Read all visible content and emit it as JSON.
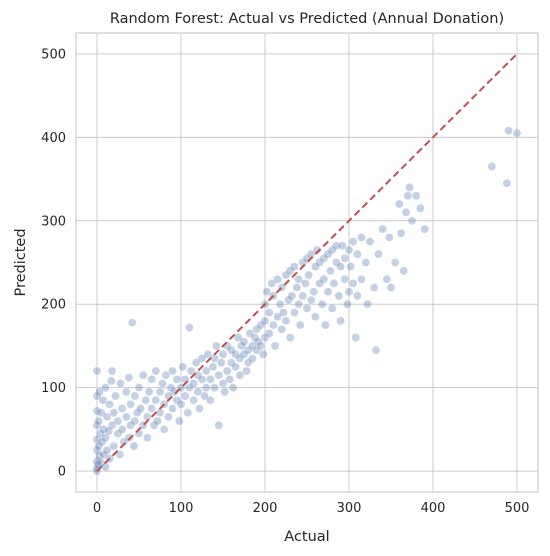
{
  "chart_data": {
    "type": "scatter",
    "title": "Random Forest: Actual vs Predicted (Annual Donation)",
    "xlabel": "Actual",
    "ylabel": "Predicted",
    "xlim": [
      -25,
      525
    ],
    "ylim": [
      -25,
      525
    ],
    "xticks": [
      0,
      100,
      200,
      300,
      400,
      500
    ],
    "yticks": [
      0,
      100,
      200,
      300,
      400,
      500
    ],
    "grid": true,
    "point_color": "#4c72b0",
    "reference_line": {
      "from": [
        0,
        0
      ],
      "to": [
        500,
        500
      ],
      "color": "#c44e52",
      "style": "dashed"
    },
    "series": [
      {
        "points": [
          [
            0,
            0
          ],
          [
            0,
            3
          ],
          [
            0,
            12
          ],
          [
            0,
            25
          ],
          [
            0,
            38
          ],
          [
            0,
            55
          ],
          [
            0,
            72
          ],
          [
            0,
            90
          ],
          [
            0,
            120
          ],
          [
            1,
            8
          ],
          [
            2,
            30
          ],
          [
            2,
            60
          ],
          [
            3,
            18
          ],
          [
            3,
            95
          ],
          [
            4,
            45
          ],
          [
            5,
            10
          ],
          [
            5,
            70
          ],
          [
            6,
            35
          ],
          [
            7,
            85
          ],
          [
            8,
            20
          ],
          [
            8,
            50
          ],
          [
            10,
            5
          ],
          [
            10,
            40
          ],
          [
            10,
            100
          ],
          [
            12,
            65
          ],
          [
            12,
            25
          ],
          [
            14,
            48
          ],
          [
            15,
            80
          ],
          [
            15,
            15
          ],
          [
            17,
            108
          ],
          [
            18,
            55
          ],
          [
            18,
            120
          ],
          [
            20,
            30
          ],
          [
            20,
            70
          ],
          [
            22,
            90
          ],
          [
            25,
            45
          ],
          [
            25,
            60
          ],
          [
            27,
            20
          ],
          [
            28,
            105
          ],
          [
            30,
            50
          ],
          [
            30,
            75
          ],
          [
            32,
            35
          ],
          [
            35,
            65
          ],
          [
            35,
            95
          ],
          [
            38,
            40
          ],
          [
            38,
            112
          ],
          [
            40,
            55
          ],
          [
            40,
            80
          ],
          [
            42,
            178
          ],
          [
            44,
            30
          ],
          [
            45,
            60
          ],
          [
            45,
            90
          ],
          [
            48,
            70
          ],
          [
            50,
            45
          ],
          [
            50,
            100
          ],
          [
            52,
            75
          ],
          [
            55,
            55
          ],
          [
            55,
            115
          ],
          [
            58,
            85
          ],
          [
            60,
            40
          ],
          [
            60,
            65
          ],
          [
            62,
            95
          ],
          [
            65,
            75
          ],
          [
            65,
            110
          ],
          [
            68,
            55
          ],
          [
            70,
            85
          ],
          [
            70,
            120
          ],
          [
            72,
            60
          ],
          [
            75,
            95
          ],
          [
            75,
            70
          ],
          [
            78,
            105
          ],
          [
            80,
            80
          ],
          [
            80,
            50
          ],
          [
            82,
            115
          ],
          [
            85,
            90
          ],
          [
            85,
            65
          ],
          [
            88,
            100
          ],
          [
            90,
            75
          ],
          [
            90,
            120
          ],
          [
            92,
            95
          ],
          [
            95,
            85
          ],
          [
            95,
            110
          ],
          [
            98,
            60
          ],
          [
            100,
            100
          ],
          [
            100,
            80
          ],
          [
            102,
            125
          ],
          [
            105,
            90
          ],
          [
            105,
            110
          ],
          [
            108,
            70
          ],
          [
            110,
            172
          ],
          [
            110,
            100
          ],
          [
            112,
            120
          ],
          [
            115,
            85
          ],
          [
            115,
            105
          ],
          [
            118,
            130
          ],
          [
            120,
            95
          ],
          [
            120,
            115
          ],
          [
            122,
            75
          ],
          [
            125,
            110
          ],
          [
            125,
            135
          ],
          [
            128,
            90
          ],
          [
            130,
            120
          ],
          [
            130,
            100
          ],
          [
            132,
            140
          ],
          [
            135,
            110
          ],
          [
            135,
            85
          ],
          [
            138,
            125
          ],
          [
            140,
            100
          ],
          [
            140,
            135
          ],
          [
            142,
            150
          ],
          [
            145,
            115
          ],
          [
            145,
            55
          ],
          [
            148,
            130
          ],
          [
            150,
            105
          ],
          [
            150,
            140
          ],
          [
            152,
            95
          ],
          [
            155,
            120
          ],
          [
            155,
            150
          ],
          [
            158,
            110
          ],
          [
            160,
            130
          ],
          [
            160,
            145
          ],
          [
            162,
            100
          ],
          [
            165,
            140
          ],
          [
            165,
            125
          ],
          [
            168,
            160
          ],
          [
            170,
            135
          ],
          [
            170,
            115
          ],
          [
            172,
            150
          ],
          [
            175,
            140
          ],
          [
            175,
            155
          ],
          [
            178,
            120
          ],
          [
            180,
            145
          ],
          [
            180,
            130
          ],
          [
            182,
            165
          ],
          [
            185,
            150
          ],
          [
            185,
            135
          ],
          [
            188,
            160
          ],
          [
            190,
            145
          ],
          [
            190,
            170
          ],
          [
            192,
            155
          ],
          [
            195,
            150
          ],
          [
            195,
            175
          ],
          [
            198,
            140
          ],
          [
            200,
            160
          ],
          [
            200,
            200
          ],
          [
            200,
            180
          ],
          [
            202,
            215
          ],
          [
            205,
            165
          ],
          [
            205,
            190
          ],
          [
            208,
            225
          ],
          [
            210,
            175
          ],
          [
            210,
            210
          ],
          [
            212,
            150
          ],
          [
            215,
            185
          ],
          [
            215,
            230
          ],
          [
            218,
            200
          ],
          [
            220,
            170
          ],
          [
            220,
            220
          ],
          [
            222,
            190
          ],
          [
            225,
            235
          ],
          [
            225,
            180
          ],
          [
            228,
            205
          ],
          [
            230,
            240
          ],
          [
            230,
            160
          ],
          [
            232,
            210
          ],
          [
            235,
            190
          ],
          [
            235,
            245
          ],
          [
            238,
            220
          ],
          [
            240,
            200
          ],
          [
            240,
            230
          ],
          [
            242,
            175
          ],
          [
            245,
            250
          ],
          [
            245,
            210
          ],
          [
            248,
            225
          ],
          [
            250,
            195
          ],
          [
            250,
            255
          ],
          [
            252,
            235
          ],
          [
            255,
            205
          ],
          [
            255,
            260
          ],
          [
            258,
            215
          ],
          [
            260,
            245
          ],
          [
            260,
            185
          ],
          [
            262,
            265
          ],
          [
            265,
            225
          ],
          [
            265,
            250
          ],
          [
            268,
            200
          ],
          [
            270,
            255
          ],
          [
            270,
            230
          ],
          [
            272,
            175
          ],
          [
            275,
            260
          ],
          [
            275,
            215
          ],
          [
            278,
            240
          ],
          [
            280,
            265
          ],
          [
            280,
            195
          ],
          [
            282,
            225
          ],
          [
            285,
            270
          ],
          [
            285,
            250
          ],
          [
            288,
            210
          ],
          [
            290,
            245
          ],
          [
            290,
            180
          ],
          [
            292,
            270
          ],
          [
            295,
            230
          ],
          [
            295,
            255
          ],
          [
            298,
            200
          ],
          [
            300,
            265
          ],
          [
            300,
            215
          ],
          [
            302,
            245
          ],
          [
            305,
            275
          ],
          [
            305,
            225
          ],
          [
            308,
            160
          ],
          [
            310,
            260
          ],
          [
            310,
            210
          ],
          [
            315,
            280
          ],
          [
            315,
            230
          ],
          [
            320,
            250
          ],
          [
            322,
            200
          ],
          [
            325,
            275
          ],
          [
            330,
            220
          ],
          [
            332,
            145
          ],
          [
            335,
            260
          ],
          [
            340,
            290
          ],
          [
            345,
            230
          ],
          [
            348,
            280
          ],
          [
            350,
            220
          ],
          [
            355,
            250
          ],
          [
            360,
            320
          ],
          [
            362,
            285
          ],
          [
            365,
            240
          ],
          [
            368,
            310
          ],
          [
            370,
            330
          ],
          [
            372,
            340
          ],
          [
            375,
            300
          ],
          [
            380,
            330
          ],
          [
            385,
            315
          ],
          [
            390,
            290
          ],
          [
            470,
            365
          ],
          [
            488,
            345
          ],
          [
            490,
            408
          ],
          [
            500,
            405
          ]
        ]
      }
    ]
  }
}
